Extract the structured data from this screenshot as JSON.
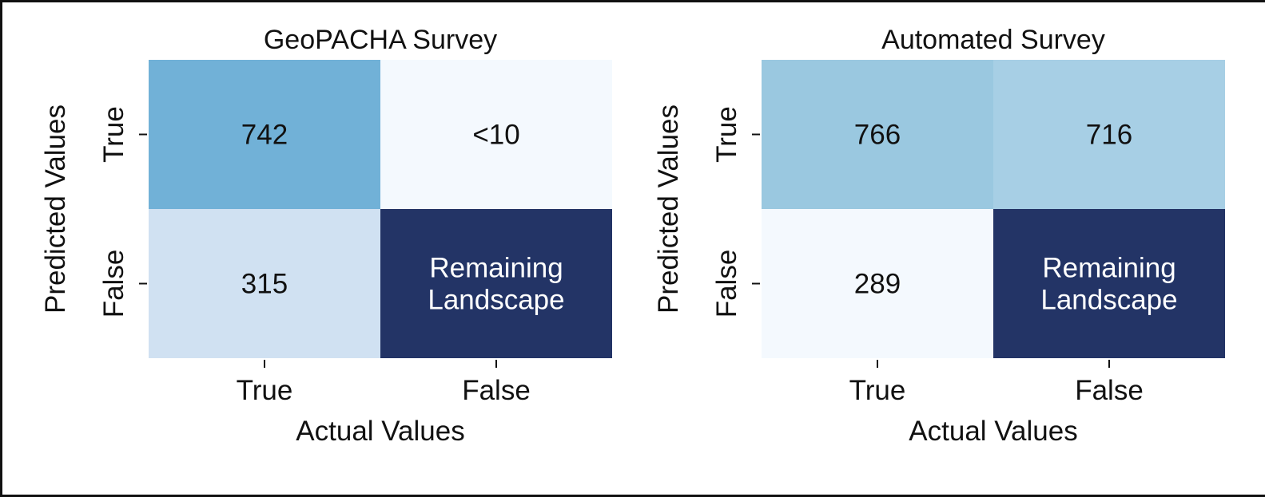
{
  "chart_data": [
    {
      "type": "heatmap",
      "title": "GeoPACHA Survey",
      "xlabel": "Actual Values",
      "ylabel": "Predicted Values",
      "x_categories": [
        "True",
        "False"
      ],
      "y_categories": [
        "True",
        "False"
      ],
      "cells": [
        [
          {
            "label": "742",
            "color": "#71b1d7"
          },
          {
            "label": "<10",
            "color": "#f4f9fe"
          }
        ],
        [
          {
            "label": "315",
            "color": "#d0e1f2"
          },
          {
            "label": "Remaining\nLandscape",
            "color": "#233466"
          }
        ]
      ],
      "colormap": "Blues"
    },
    {
      "type": "heatmap",
      "title": "Automated Survey",
      "xlabel": "Actual Values",
      "ylabel": "Predicted Values",
      "x_categories": [
        "True",
        "False"
      ],
      "y_categories": [
        "True",
        "False"
      ],
      "cells": [
        [
          {
            "label": "766",
            "color": "#9ac8e0"
          },
          {
            "label": "716",
            "color": "#a7cfe5"
          }
        ],
        [
          {
            "label": "289",
            "color": "#f4f9fe"
          },
          {
            "label": "Remaining\nLandscape",
            "color": "#233466"
          }
        ]
      ],
      "colormap": "Blues"
    }
  ]
}
